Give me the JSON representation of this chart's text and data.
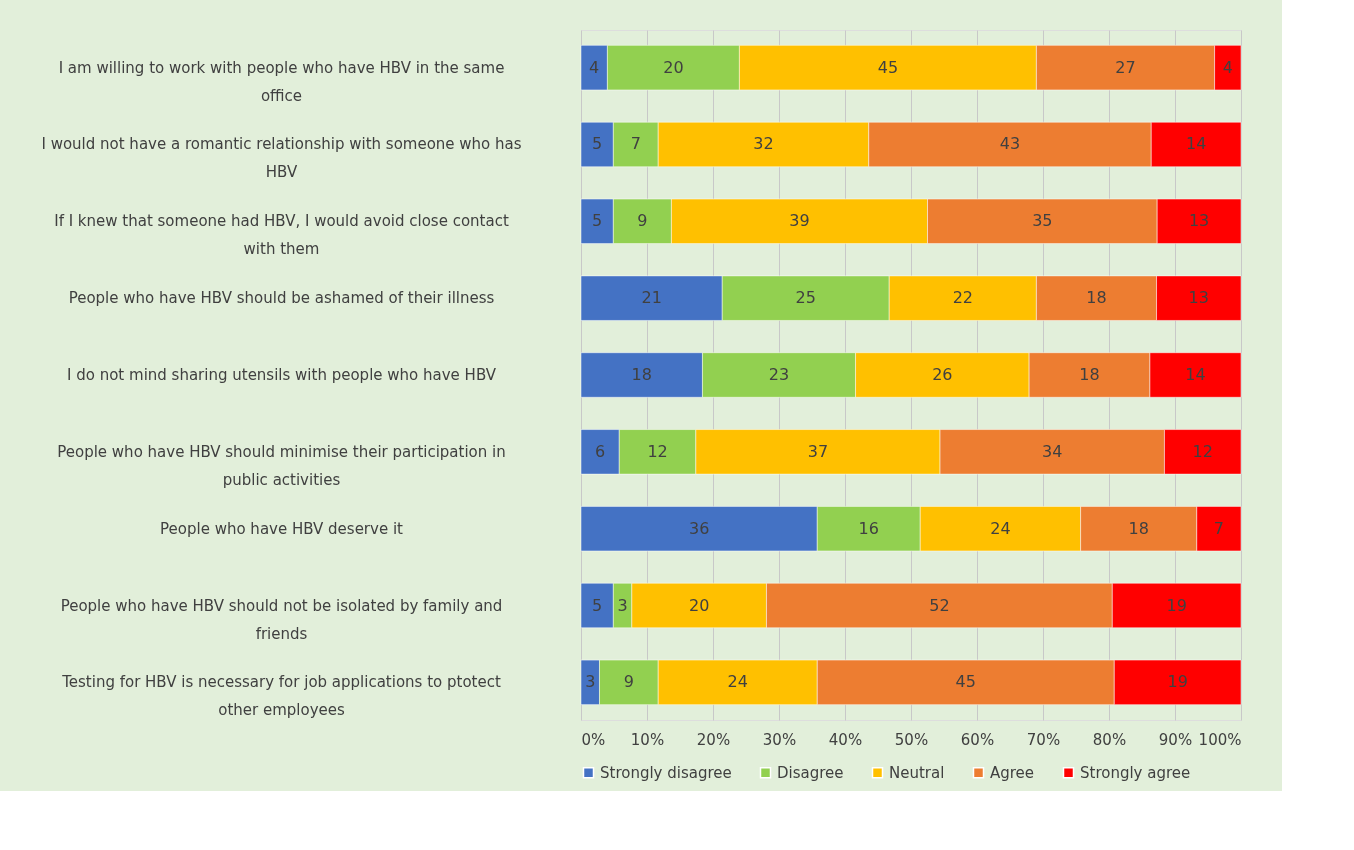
{
  "chart_data": {
    "type": "bar",
    "orientation": "horizontal",
    "stacked": true,
    "categories": [
      "I am willing to work with people who have HBV in the same office",
      "I would not have a romantic relationship with someone who has HBV",
      "If I knew that someone had HBV, I would avoid close contact with them",
      "People who have HBV should be ashamed of their illness",
      "I do not mind sharing utensils with people who have HBV",
      "People who have HBV should minimise their participation in public activities",
      "People who have HBV deserve it",
      "People who have HBV should not be isolated by family and friends",
      "Testing for HBV is necessary for job applications to ptotect other employees"
    ],
    "series": [
      {
        "name": "Strongly disagree",
        "color": "#4472c4",
        "values": [
          4,
          4.9,
          4.9,
          21.4,
          18.4,
          5.8,
          35.8,
          4.9,
          2.8
        ],
        "value_labels": [
          "4",
          "5",
          "5",
          "21",
          "18",
          "6",
          "36",
          "5",
          "3"
        ]
      },
      {
        "name": "Disagree",
        "color": "#92d050",
        "values": [
          20,
          6.8,
          8.8,
          25.3,
          23.2,
          11.6,
          15.6,
          2.8,
          8.9
        ],
        "value_labels": [
          "20",
          "7",
          "9",
          "25",
          "23",
          "12",
          "16",
          "3",
          "9"
        ]
      },
      {
        "name": "Neutral",
        "color": "#ffc000",
        "values": [
          45,
          31.9,
          38.8,
          22.3,
          26.3,
          37.0,
          24.3,
          20.4,
          24.1
        ],
        "value_labels": [
          "45",
          "32",
          "39",
          "22",
          "26",
          "37",
          "24",
          "20",
          "24"
        ]
      },
      {
        "name": "Agree",
        "color": "#ed7d31",
        "values": [
          27,
          42.8,
          34.8,
          18.2,
          18.3,
          34.0,
          17.6,
          52.4,
          45.0
        ],
        "value_labels": [
          "27",
          "43",
          "35",
          "18",
          "18",
          "34",
          "18",
          "52",
          "45"
        ]
      },
      {
        "name": "Strongly agree",
        "color": "#ff0000",
        "values": [
          4,
          13.6,
          12.7,
          12.8,
          13.8,
          11.6,
          6.7,
          19.5,
          19.2
        ],
        "value_labels": [
          "4",
          "14",
          "13",
          "13",
          "14",
          "12",
          "7",
          "19",
          "19"
        ]
      }
    ],
    "xlim": [
      0,
      100
    ],
    "xticks": [
      {
        "value": 0,
        "label": "0%"
      },
      {
        "value": 10,
        "label": "10%"
      },
      {
        "value": 20,
        "label": "20%"
      },
      {
        "value": 30,
        "label": "30%"
      },
      {
        "value": 40,
        "label": "40%"
      },
      {
        "value": 50,
        "label": "50%"
      },
      {
        "value": 60,
        "label": "60%"
      },
      {
        "value": 70,
        "label": "70%"
      },
      {
        "value": 80,
        "label": "80%"
      },
      {
        "value": 90,
        "label": "90%"
      },
      {
        "value": 100,
        "label": "100%"
      }
    ],
    "grid": "x",
    "legend": "bottom"
  }
}
